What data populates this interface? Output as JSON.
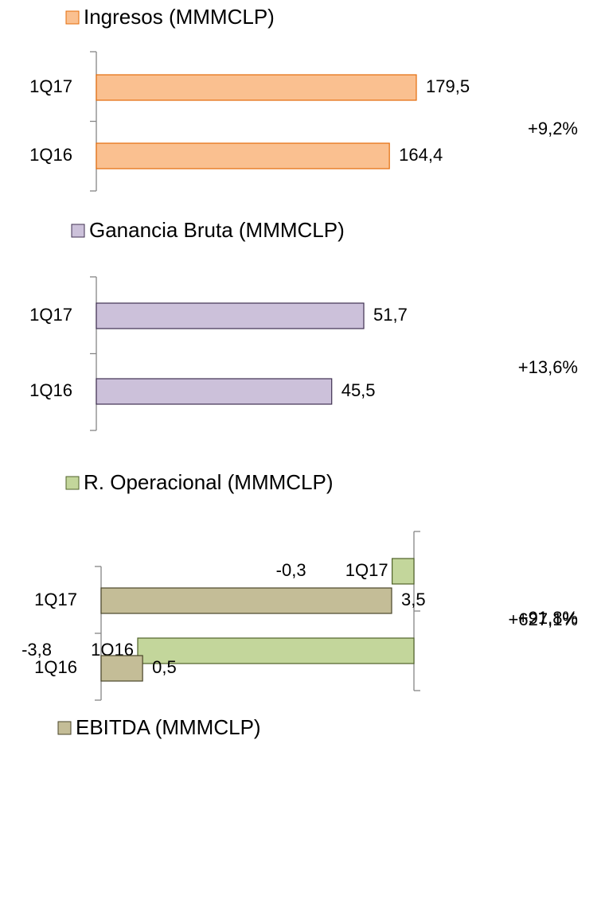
{
  "chart_data": [
    {
      "type": "bar",
      "categories": [
        "1Q17",
        "1Q16"
      ],
      "series": [
        {
          "name": "Ingresos (MMMCLP)",
          "color": "#fac090",
          "values": [
            179.5,
            164.4
          ],
          "value_labels": [
            "179,5",
            "164,4"
          ]
        }
      ],
      "annotations": [
        "+9,2%"
      ]
    },
    {
      "type": "bar",
      "categories": [
        "1Q17",
        "1Q16"
      ],
      "series": [
        {
          "name": "Ganancia Bruta (MMMCLP)",
          "color": "#ccc1da",
          "values": [
            51.7,
            45.5
          ],
          "value_labels": [
            "51,7",
            "45,5"
          ]
        }
      ],
      "annotations": [
        "+13,6%"
      ]
    },
    {
      "type": "bar",
      "categories": [
        "1Q17",
        "1Q16"
      ],
      "series": [
        {
          "name": "R. Operacional (MMMCLP)",
          "color": "#c3d69b",
          "values": [
            -0.3,
            -3.8
          ],
          "value_labels": [
            "-0,3",
            "-3,8"
          ]
        }
      ],
      "annotations": [
        "+91,8%"
      ]
    },
    {
      "type": "bar",
      "categories": [
        "1Q17",
        "1Q16"
      ],
      "series": [
        {
          "name": "EBITDA (MMMCLP)",
          "color": "#c4bd97",
          "values": [
            3.5,
            0.5
          ],
          "value_labels": [
            "3,5",
            "0,5"
          ]
        }
      ],
      "annotations": [
        "+627,1%"
      ]
    }
  ]
}
